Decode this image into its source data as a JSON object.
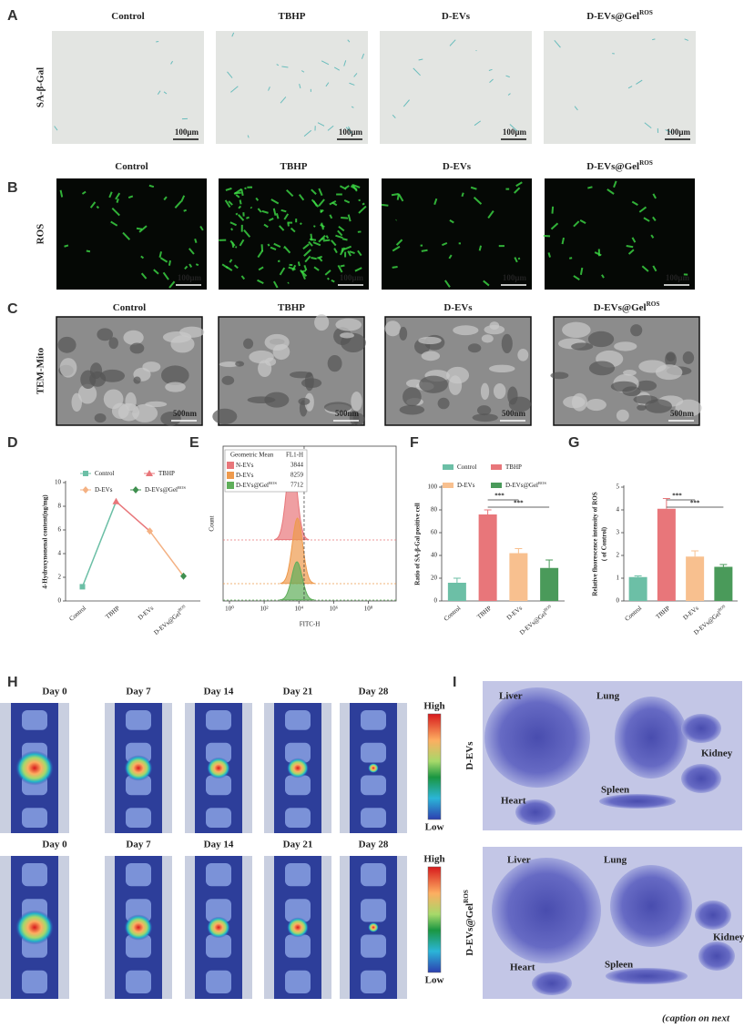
{
  "figure": {
    "panel_letters": [
      "A",
      "B",
      "C",
      "D",
      "E",
      "F",
      "G",
      "H",
      "I"
    ],
    "groups": [
      "Control",
      "TBHP",
      "D-EVs",
      "D-EVs@Gel"
    ],
    "group_sups": [
      null,
      null,
      null,
      "ROS"
    ],
    "row_labels": {
      "A": "SA-β-Gal",
      "B": "ROS",
      "C": "TEM-Mito"
    },
    "scale_bars": {
      "A": "100μm",
      "B": "100μm",
      "C": "500nm"
    },
    "days": [
      "Day 0",
      "Day 7",
      "Day 14",
      "Day 21",
      "Day 28"
    ],
    "in_vivo_rows": [
      "D-EVs",
      "D-EVs@Gel"
    ],
    "in_vivo_row_sups": [
      null,
      "ROS"
    ],
    "colorbar": {
      "high": "High",
      "low": "Low"
    },
    "organs": [
      "Liver",
      "Lung",
      "Kidney",
      "Heart",
      "Spleen"
    ],
    "caption": "(caption on next"
  },
  "chart_data": [
    {
      "type": "line",
      "categories": [
        "Control",
        "TBHP",
        "D-EVs",
        "D-EVs@Gel"
      ],
      "category_sups": [
        null,
        null,
        null,
        "ROS"
      ],
      "values": [
        1.2,
        8.4,
        5.9,
        2.1
      ],
      "point_colors": [
        "#6cbfa6",
        "#e8767a",
        "#f4b183",
        "#3f8f4f"
      ],
      "markers": [
        "square",
        "triangle",
        "diamond",
        "diamond"
      ],
      "ylabel": "4-Hydroxynonenal content(ng/mg)",
      "ylim": [
        0,
        10
      ],
      "yticks": [
        0,
        2,
        4,
        6,
        8,
        10
      ]
    },
    {
      "type": "flow",
      "legend_header": [
        "Geometric Mean",
        "FL1-H"
      ],
      "name_sups": [
        null,
        null,
        "ROS"
      ],
      "series": [
        {
          "name": "N-EVs",
          "color": "#e8767a",
          "geometric_mean": 3844
        },
        {
          "name": "D-EVs",
          "color": "#ee9a4d",
          "geometric_mean": 8259
        },
        {
          "name": "D-EVs@Gel",
          "color": "#5fae5a",
          "geometric_mean": 7712
        }
      ],
      "xlabel": "FITC-H",
      "ylabel": "Count",
      "log": true,
      "xlim": [
        0.43,
        4000000000
      ],
      "reference_line_x": 20000,
      "xticks": [
        {
          "value": 1,
          "label": "10⁰"
        },
        {
          "value": 100,
          "label": "10²"
        },
        {
          "value": 10000,
          "label": "10⁴"
        },
        {
          "value": 1000000,
          "label": "10⁶"
        },
        {
          "value": 100000000,
          "label": "10⁸"
        }
      ]
    },
    {
      "type": "bar",
      "categories": [
        "Control",
        "TBHP",
        "D-EVs",
        "D-EVs@Gel"
      ],
      "category_sups": [
        null,
        null,
        null,
        "ROS"
      ],
      "values": [
        16,
        76,
        42,
        29
      ],
      "errors": [
        4,
        4,
        4,
        7
      ],
      "colors": [
        "#6cbfa6",
        "#e8767a",
        "#f8c08f",
        "#4a9a5a"
      ],
      "ylabel": [
        "Ratio of SA-β-Gal positive cell"
      ],
      "ylim": [
        0,
        100
      ],
      "yticks": [
        0,
        20,
        40,
        60,
        80,
        100
      ],
      "legend": true,
      "significance": [
        {
          "label": "***",
          "between": [
            "TBHP",
            "D-EVs"
          ]
        },
        {
          "label": "***",
          "between": [
            "TBHP",
            "D-EVs@Gel"
          ]
        }
      ]
    },
    {
      "type": "bar",
      "categories": [
        "Control",
        "TBHP",
        "D-EVs",
        "D-EVs@Gel"
      ],
      "category_sups": [
        null,
        null,
        null,
        "ROS"
      ],
      "values": [
        1.05,
        4.05,
        1.95,
        1.5
      ],
      "errors": [
        0.05,
        0.45,
        0.25,
        0.1
      ],
      "colors": [
        "#6cbfa6",
        "#e8767a",
        "#f8c08f",
        "#4a9a5a"
      ],
      "ylabel": [
        "Relative fluorescence intensity of ROS",
        "( of Control)"
      ],
      "ylim": [
        0,
        5
      ],
      "yticks": [
        0,
        1,
        2,
        3,
        4,
        5
      ],
      "legend": false,
      "significance": [
        {
          "label": "***",
          "between": [
            "TBHP",
            "D-EVs"
          ]
        },
        {
          "label": "***",
          "between": [
            "TBHP",
            "D-EVs@Gel"
          ]
        }
      ]
    }
  ]
}
